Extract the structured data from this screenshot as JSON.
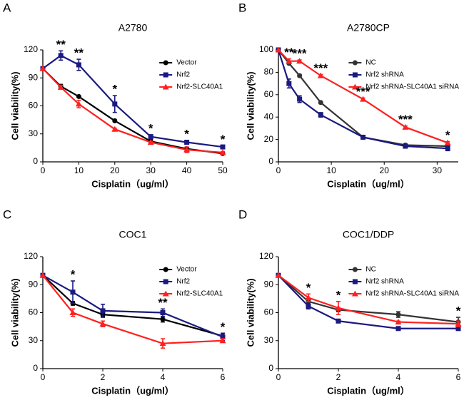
{
  "chart_data": [
    {
      "type": "line",
      "panel": "A",
      "title": "A2780",
      "ylabel": "Cell viability(%)",
      "xlabel": "Cisplatin（ug/ml）",
      "x": [
        0,
        5,
        10,
        20,
        30,
        40,
        50
      ],
      "xlim": [
        0,
        50
      ],
      "xticks": [
        0,
        10,
        20,
        30,
        40,
        50
      ],
      "ylim": [
        0,
        120
      ],
      "yticks": [
        0,
        30,
        60,
        90,
        120
      ],
      "legend": "upper right",
      "series": [
        {
          "name": "Vector",
          "color": "#000000",
          "marker": "circle",
          "values": [
            100,
            81,
            70,
            44,
            22,
            14,
            9
          ],
          "errors": [
            0,
            2,
            1,
            1,
            2,
            1,
            1
          ]
        },
        {
          "name": "Nrf2",
          "color": "#1a1a80",
          "marker": "square",
          "values": [
            100,
            114,
            104,
            62,
            27,
            21,
            16
          ],
          "errors": [
            0,
            5,
            6,
            9,
            2,
            2,
            1
          ]
        },
        {
          "name": "Nrf2-SLC40A1",
          "color": "#ff2020",
          "marker": "triangle",
          "values": [
            100,
            80,
            62,
            35,
            21,
            13,
            10
          ],
          "errors": [
            0,
            2,
            4,
            1,
            1,
            3,
            1
          ]
        }
      ],
      "annotations": [
        {
          "x": 5,
          "text": "**"
        },
        {
          "x": 10,
          "text": "**"
        },
        {
          "x": 20,
          "text": "*"
        },
        {
          "x": 30,
          "text": "*"
        },
        {
          "x": 40,
          "text": "*"
        },
        {
          "x": 50,
          "text": "*"
        }
      ]
    },
    {
      "type": "line",
      "panel": "B",
      "title": "A2780CP",
      "ylabel": "Cell viability(%)",
      "xlabel": "Cisplatin（ug/ml）",
      "x": [
        0,
        2,
        4,
        8,
        16,
        24,
        32
      ],
      "xlim": [
        0,
        34
      ],
      "xticks": [
        0,
        10,
        20,
        30
      ],
      "ylim": [
        0,
        100
      ],
      "yticks": [
        0,
        20,
        40,
        60,
        80,
        100
      ],
      "legend": "upper right",
      "series": [
        {
          "name": "NC",
          "color": "#333333",
          "marker": "circle",
          "values": [
            100,
            88,
            77,
            53,
            22,
            15,
            14
          ],
          "errors": [
            0,
            1,
            1,
            1,
            1,
            1,
            1
          ]
        },
        {
          "name": "Nrf2 shRNA",
          "color": "#1a1a80",
          "marker": "square",
          "values": [
            100,
            70,
            56,
            42,
            22,
            14,
            12
          ],
          "errors": [
            0,
            4,
            3,
            2,
            1,
            1,
            2
          ]
        },
        {
          "name": "Nrf2 shRNA-SLC40A1 siRNA",
          "color": "#ff2020",
          "marker": "triangle",
          "values": [
            100,
            90,
            90,
            77,
            56,
            31,
            17
          ],
          "errors": [
            0,
            2,
            1,
            1,
            1,
            1,
            1
          ]
        }
      ],
      "annotations": [
        {
          "x": 2,
          "text": "**"
        },
        {
          "x": 4,
          "text": "***"
        },
        {
          "x": 8,
          "text": "***"
        },
        {
          "x": 16,
          "text": "***"
        },
        {
          "x": 24,
          "text": "***"
        },
        {
          "x": 32,
          "text": "*"
        }
      ]
    },
    {
      "type": "line",
      "panel": "C",
      "title": "COC1",
      "ylabel": "Cell viability(%)",
      "xlabel": "Cisplatin（ug/ml）",
      "x": [
        0,
        1,
        2,
        4,
        6
      ],
      "xlim": [
        0,
        6
      ],
      "xticks": [
        0,
        2,
        4,
        6
      ],
      "ylim": [
        0,
        120
      ],
      "yticks": [
        0,
        30,
        60,
        90,
        120
      ],
      "legend": "upper right",
      "series": [
        {
          "name": "Vector",
          "color": "#000000",
          "marker": "circle",
          "values": [
            100,
            70,
            58,
            53,
            35
          ],
          "errors": [
            0,
            2,
            2,
            3,
            3
          ]
        },
        {
          "name": "Nrf2",
          "color": "#1a1a80",
          "marker": "square",
          "values": [
            100,
            82,
            62,
            60,
            34
          ],
          "errors": [
            0,
            12,
            7,
            4,
            4
          ]
        },
        {
          "name": "Nrf2-SLC40A1",
          "color": "#ff2020",
          "marker": "triangle",
          "values": [
            100,
            60,
            48,
            27,
            30
          ],
          "errors": [
            0,
            4,
            3,
            5,
            2
          ]
        }
      ],
      "annotations": [
        {
          "x": 1,
          "text": "*"
        },
        {
          "x": 4,
          "text": "**"
        },
        {
          "x": 6,
          "text": "*"
        }
      ]
    },
    {
      "type": "line",
      "panel": "D",
      "title": "COC1/DDP",
      "ylabel": "Cell viability(%)",
      "xlabel": "Cisplatin（ug/ml）",
      "x": [
        0,
        1,
        2,
        4,
        6
      ],
      "xlim": [
        0,
        6
      ],
      "xticks": [
        0,
        2,
        4,
        6
      ],
      "ylim": [
        0,
        120
      ],
      "yticks": [
        0,
        30,
        60,
        90,
        120
      ],
      "legend": "upper right",
      "series": [
        {
          "name": "NC",
          "color": "#333333",
          "marker": "circle",
          "values": [
            100,
            72,
            63,
            58,
            50
          ],
          "errors": [
            0,
            3,
            2,
            3,
            5
          ]
        },
        {
          "name": "Nrf2 shRNA",
          "color": "#1a1a80",
          "marker": "square",
          "values": [
            100,
            67,
            51,
            43,
            43
          ],
          "errors": [
            0,
            3,
            1,
            1,
            2
          ]
        },
        {
          "name": "Nrf2 shRNA-SLC40A1 siRNA",
          "color": "#ff2020",
          "marker": "triangle",
          "values": [
            100,
            76,
            65,
            50,
            48
          ],
          "errors": [
            0,
            4,
            7,
            1,
            3
          ]
        }
      ],
      "annotations": [
        {
          "x": 1,
          "text": "*"
        },
        {
          "x": 2,
          "text": "*"
        },
        {
          "x": 6,
          "text": "*"
        }
      ]
    }
  ]
}
